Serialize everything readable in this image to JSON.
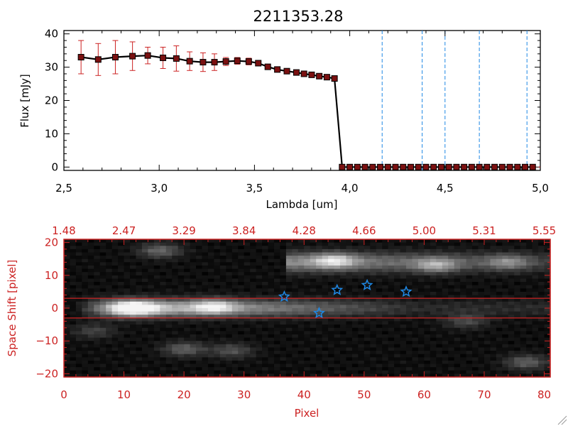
{
  "title": "2211353.28",
  "colors": {
    "spectrum_line": "#000000",
    "marker_fill": "#7a1010",
    "error_bar": "#cc2222",
    "dashed_lines": "#1e88e5",
    "bottom_axis": "#cc2222",
    "stars": "#1e88e5",
    "red_guides": "#cc2222"
  },
  "chart_data": [
    {
      "type": "line",
      "title": "2211353.28",
      "xlabel": "Lambda [um]",
      "ylabel": "Flux [mJy]",
      "xlim": [
        2.5,
        5.0
      ],
      "ylim": [
        -1,
        41
      ],
      "x_ticks": [
        2.5,
        3.0,
        3.5,
        4.0,
        4.5,
        5.0
      ],
      "x_tick_labels": [
        "2,5",
        "3,0",
        "3,5",
        "4,0",
        "4,5",
        "5,0"
      ],
      "y_ticks": [
        0,
        10,
        20,
        30,
        40
      ],
      "y_tick_labels": [
        "0",
        "10",
        "20",
        "30",
        "40"
      ],
      "series": [
        {
          "x": [
            2.59,
            2.68,
            2.77,
            2.86,
            2.94,
            3.02,
            3.09,
            3.16,
            3.23,
            3.29,
            3.35,
            3.41,
            3.47,
            3.52,
            3.57,
            3.62,
            3.67,
            3.72,
            3.76,
            3.8,
            3.84,
            3.88,
            3.92,
            3.96,
            4.0,
            4.04,
            4.08,
            4.12,
            4.16,
            4.2,
            4.24,
            4.28,
            4.32,
            4.36,
            4.4,
            4.44,
            4.48,
            4.52,
            4.56,
            4.6,
            4.64,
            4.68,
            4.72,
            4.76,
            4.8,
            4.84,
            4.88,
            4.92,
            4.96
          ],
          "y": [
            33.0,
            32.3,
            33.0,
            33.3,
            33.5,
            32.8,
            32.6,
            31.8,
            31.5,
            31.5,
            31.7,
            31.9,
            31.7,
            31.2,
            30.1,
            29.3,
            28.8,
            28.4,
            28.0,
            27.7,
            27.3,
            27.0,
            26.6,
            0.0,
            0.0,
            0.0,
            0.0,
            0.0,
            0.0,
            0.0,
            0.0,
            0.0,
            0.0,
            0.0,
            0.0,
            0.0,
            0.0,
            0.0,
            0.0,
            0.0,
            0.0,
            0.0,
            0.0,
            0.0,
            0.0,
            0.0,
            0.0,
            0.0,
            0.0
          ],
          "yerr": [
            5.0,
            4.8,
            5.0,
            4.3,
            2.5,
            3.2,
            3.8,
            2.8,
            2.8,
            2.5,
            1.2,
            1.0,
            1.0,
            0.8,
            0.8,
            0.6,
            0.6,
            0.5,
            0.5,
            0.5,
            0.5,
            0.5,
            0.5,
            0,
            0,
            0,
            0,
            0,
            0,
            0,
            0,
            0,
            0,
            0,
            0,
            0,
            0,
            0,
            0,
            0,
            0,
            0,
            0,
            0,
            0,
            0,
            0,
            0,
            0
          ]
        }
      ],
      "vertical_dashed_x": [
        4.17,
        4.38,
        4.5,
        4.68,
        4.93
      ],
      "grid": false
    },
    {
      "type": "heatmap",
      "xlabel": "Pixel",
      "ylabel": "Space Shift [pixel]",
      "xlim": [
        0,
        81
      ],
      "ylim": [
        -21,
        21
      ],
      "x_ticks": [
        0,
        10,
        20,
        30,
        40,
        50,
        60,
        70,
        80
      ],
      "x_tick_labels": [
        "0",
        "10",
        "20",
        "30",
        "40",
        "50",
        "60",
        "70",
        "80"
      ],
      "y_ticks": [
        -20,
        -10,
        0,
        10,
        20
      ],
      "y_tick_labels": [
        "−20",
        "−10",
        "0",
        "10",
        "20"
      ],
      "top_axis_ticks": [
        0,
        10,
        20,
        30,
        40,
        50,
        60,
        70,
        80
      ],
      "top_axis_labels": [
        "1.48",
        "2.47",
        "3.29",
        "3.84",
        "4.28",
        "4.66",
        "5.00",
        "5.31",
        "5.55"
      ],
      "horizontal_lines_y": [
        3,
        -3
      ],
      "star_markers": [
        {
          "x": 36.7,
          "y": 3.5
        },
        {
          "x": 42.5,
          "y": -1.5
        },
        {
          "x": 45.5,
          "y": 5.5
        },
        {
          "x": 50.5,
          "y": 7.0
        },
        {
          "x": 57.0,
          "y": 5.0
        }
      ],
      "blobs": [
        {
          "x": 12,
          "y": 0,
          "intensity": 1.0
        },
        {
          "x": 25,
          "y": 0.5,
          "intensity": 0.8
        },
        {
          "x": 45,
          "y": 14.5,
          "intensity": 0.85
        },
        {
          "x": 62,
          "y": 13,
          "intensity": 0.7
        },
        {
          "x": 74,
          "y": 14,
          "intensity": 0.55
        },
        {
          "x": 16,
          "y": 17.5,
          "intensity": 0.6
        },
        {
          "x": 20,
          "y": -12.5,
          "intensity": 0.55
        },
        {
          "x": 28,
          "y": -13,
          "intensity": 0.45
        },
        {
          "x": 77,
          "y": -16.5,
          "intensity": 0.55
        },
        {
          "x": 67,
          "y": -4,
          "intensity": 0.4
        },
        {
          "x": 5,
          "y": -7,
          "intensity": 0.35
        }
      ]
    }
  ]
}
